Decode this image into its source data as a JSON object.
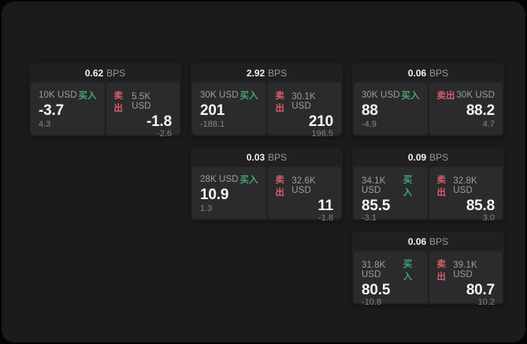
{
  "unit_label": "BPS",
  "buy_label": "买入",
  "sell_label": "卖出",
  "colors": {
    "buy_accent": "#41a873",
    "sell_accent": "#d95c6b",
    "surface": "#1b1b1d",
    "card": "#202022",
    "panel": "#2b2b2d"
  },
  "cards": [
    {
      "row": 1,
      "col": 1,
      "bps": "0.62",
      "buy": {
        "amount": "10K USD",
        "price": "-3.7",
        "delta": "4.3"
      },
      "sell": {
        "amount": "5.5K USD",
        "price": "-1.8",
        "delta": "-2.6"
      }
    },
    {
      "row": 1,
      "col": 2,
      "bps": "2.92",
      "buy": {
        "amount": "30K USD",
        "price": "201",
        "delta": "-188.1"
      },
      "sell": {
        "amount": "30.1K USD",
        "price": "210",
        "delta": "196.5"
      }
    },
    {
      "row": 1,
      "col": 3,
      "bps": "0.06",
      "buy": {
        "amount": "30K USD",
        "price": "88",
        "delta": "-4.9"
      },
      "sell": {
        "amount": "30K USD",
        "price": "88.2",
        "delta": "4.7"
      }
    },
    {
      "row": 2,
      "col": 2,
      "bps": "0.03",
      "buy": {
        "amount": "28K USD",
        "price": "10.9",
        "delta": "1.3"
      },
      "sell": {
        "amount": "32.6K USD",
        "price": "11",
        "delta": "-1.8"
      }
    },
    {
      "row": 2,
      "col": 3,
      "bps": "0.09",
      "buy": {
        "amount": "34.1K USD",
        "price": "85.5",
        "delta": "-3.1"
      },
      "sell": {
        "amount": "32.8K USD",
        "price": "85.8",
        "delta": "3.0"
      }
    },
    {
      "row": 3,
      "col": 3,
      "bps": "0.06",
      "buy": {
        "amount": "31.8K USD",
        "price": "80.5",
        "delta": "-10.8"
      },
      "sell": {
        "amount": "39.1K USD",
        "price": "80.7",
        "delta": "10.2"
      }
    }
  ]
}
